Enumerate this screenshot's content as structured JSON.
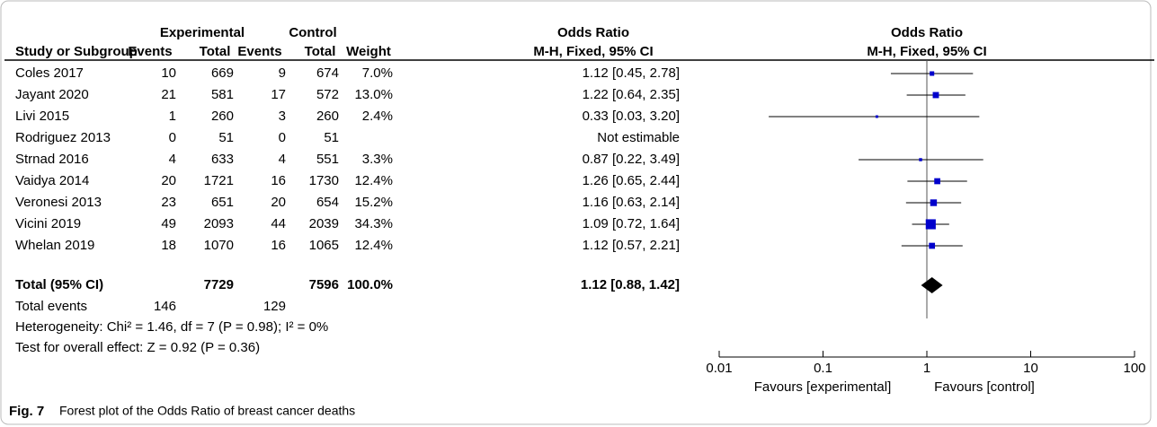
{
  "chart_data": {
    "type": "forest",
    "header": {
      "experimental": "Experimental",
      "control": "Control",
      "odds_ratio": "Odds Ratio",
      "method": "M-H, Fixed, 95% CI",
      "study": "Study or Subgroup",
      "events": "Events",
      "total": "Total",
      "weight": "Weight"
    },
    "rows": [
      {
        "name": "Coles 2017",
        "exp_events": 10,
        "exp_total": 669,
        "ctrl_events": 9,
        "ctrl_total": 674,
        "weight": 7.0,
        "weight_label": "7.0%",
        "or": 1.12,
        "ci": [
          0.45,
          2.78
        ],
        "or_label": "1.12 [0.45, 2.78]"
      },
      {
        "name": "Jayant 2020",
        "exp_events": 21,
        "exp_total": 581,
        "ctrl_events": 17,
        "ctrl_total": 572,
        "weight": 13.0,
        "weight_label": "13.0%",
        "or": 1.22,
        "ci": [
          0.64,
          2.35
        ],
        "or_label": "1.22 [0.64, 2.35]"
      },
      {
        "name": "Livi 2015",
        "exp_events": 1,
        "exp_total": 260,
        "ctrl_events": 3,
        "ctrl_total": 260,
        "weight": 2.4,
        "weight_label": "2.4%",
        "or": 0.33,
        "ci": [
          0.03,
          3.2
        ],
        "or_label": "0.33 [0.03, 3.20]"
      },
      {
        "name": "Rodriguez 2013",
        "exp_events": 0,
        "exp_total": 51,
        "ctrl_events": 0,
        "ctrl_total": 51,
        "weight": null,
        "weight_label": null,
        "or": null,
        "ci": [
          null,
          null
        ],
        "or_label": "Not estimable"
      },
      {
        "name": "Strnad 2016",
        "exp_events": 4,
        "exp_total": 633,
        "ctrl_events": 4,
        "ctrl_total": 551,
        "weight": 3.3,
        "weight_label": "3.3%",
        "or": 0.87,
        "ci": [
          0.22,
          3.49
        ],
        "or_label": "0.87 [0.22, 3.49]"
      },
      {
        "name": "Vaidya 2014",
        "exp_events": 20,
        "exp_total": 1721,
        "ctrl_events": 16,
        "ctrl_total": 1730,
        "weight": 12.4,
        "weight_label": "12.4%",
        "or": 1.26,
        "ci": [
          0.65,
          2.44
        ],
        "or_label": "1.26 [0.65, 2.44]"
      },
      {
        "name": "Veronesi 2013",
        "exp_events": 23,
        "exp_total": 651,
        "ctrl_events": 20,
        "ctrl_total": 654,
        "weight": 15.2,
        "weight_label": "15.2%",
        "or": 1.16,
        "ci": [
          0.63,
          2.14
        ],
        "or_label": "1.16 [0.63, 2.14]"
      },
      {
        "name": "Vicini 2019",
        "exp_events": 49,
        "exp_total": 2093,
        "ctrl_events": 44,
        "ctrl_total": 2039,
        "weight": 34.3,
        "weight_label": "34.3%",
        "or": 1.09,
        "ci": [
          0.72,
          1.64
        ],
        "or_label": "1.09 [0.72, 1.64]"
      },
      {
        "name": "Whelan 2019",
        "exp_events": 18,
        "exp_total": 1070,
        "ctrl_events": 16,
        "ctrl_total": 1065,
        "weight": 12.4,
        "weight_label": "12.4%",
        "or": 1.12,
        "ci": [
          0.57,
          2.21
        ],
        "or_label": "1.12 [0.57, 2.21]"
      }
    ],
    "total": {
      "name": "Total (95% CI)",
      "exp_total": 7729,
      "ctrl_total": 7596,
      "weight": 100.0,
      "weight_label": "100.0%",
      "or": 1.12,
      "ci": [
        0.88,
        1.42
      ],
      "or_label": "1.12 [0.88, 1.42]"
    },
    "total_events": {
      "name": "Total events",
      "exp_events": 146,
      "ctrl_events": 129
    },
    "heterogeneity": "Heterogeneity: Chi² = 1.46, df = 7 (P = 0.98); I² = 0%",
    "overall_effect": "Test for overall effect: Z = 0.92 (P = 0.36)",
    "log_x": true,
    "xlim": [
      0.01,
      100
    ],
    "xticks": [
      0.01,
      0.1,
      1,
      10,
      100
    ],
    "xlabel_left": "Favours [experimental]",
    "xlabel_right": "Favours [control]",
    "marker_color": "#0000cc",
    "caption_label": "Fig. 7",
    "caption": "Forest plot of the Odds Ratio of breast cancer deaths"
  }
}
